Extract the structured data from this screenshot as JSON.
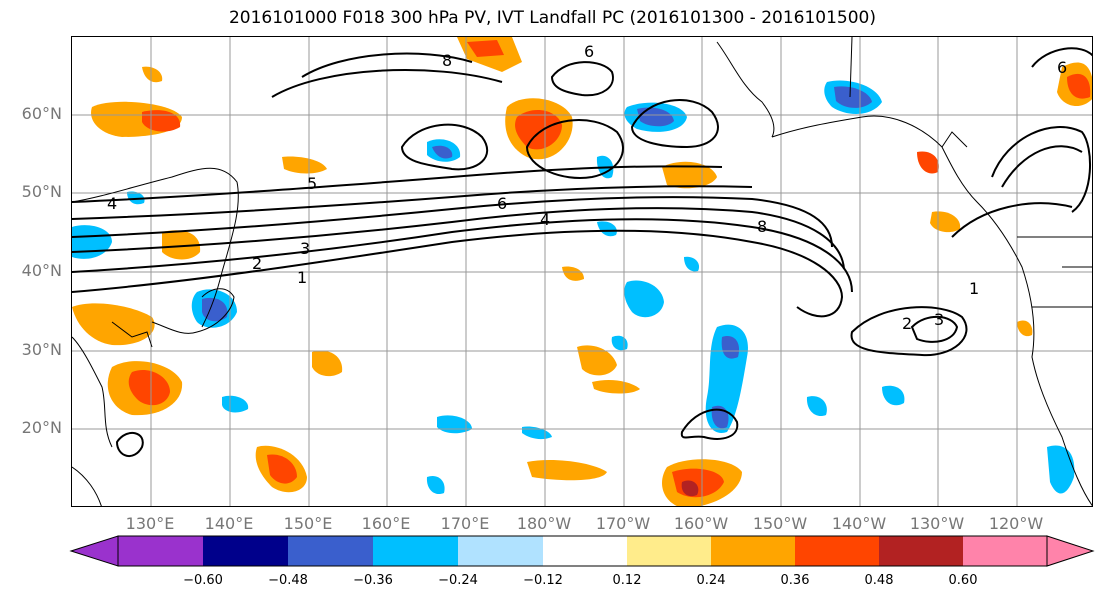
{
  "title": "2016101000 F018 300 hPa PV, IVT Landfall PC (2016101300 - 2016101500)",
  "lat_labels": [
    "60°N",
    "50°N",
    "40°N",
    "30°N",
    "20°N"
  ],
  "lon_labels": [
    "130°E",
    "140°E",
    "150°E",
    "160°E",
    "170°E",
    "180°W",
    "170°W",
    "160°W",
    "150°W",
    "140°W",
    "130°W",
    "120°W"
  ],
  "contour_labels": [
    "1",
    "2",
    "3",
    "4",
    "6",
    "8",
    "5",
    "6",
    "4",
    "1",
    "3",
    "2",
    "6",
    "8"
  ],
  "colorbar": {
    "ticks": [
      "−0.60",
      "−0.48",
      "−0.36",
      "−0.24",
      "−0.12",
      "0.12",
      "0.24",
      "0.36",
      "0.48",
      "0.60"
    ],
    "colors": [
      "#9a32cd",
      "#00008b",
      "#3a5fcd",
      "#00bfff",
      "#b0e2ff",
      "#ffffff",
      "#ffec8b",
      "#ffa500",
      "#ff4500",
      "#b22222",
      "#ff83aa"
    ]
  },
  "colors": {
    "neg_strong": "#3a5fcd",
    "neg_mid": "#00bfff",
    "neg_light": "#b0e2ff",
    "pos_light": "#ffec8b",
    "pos_mid": "#ffa500",
    "pos_strong": "#ff4500",
    "pos_max": "#b22222"
  }
}
